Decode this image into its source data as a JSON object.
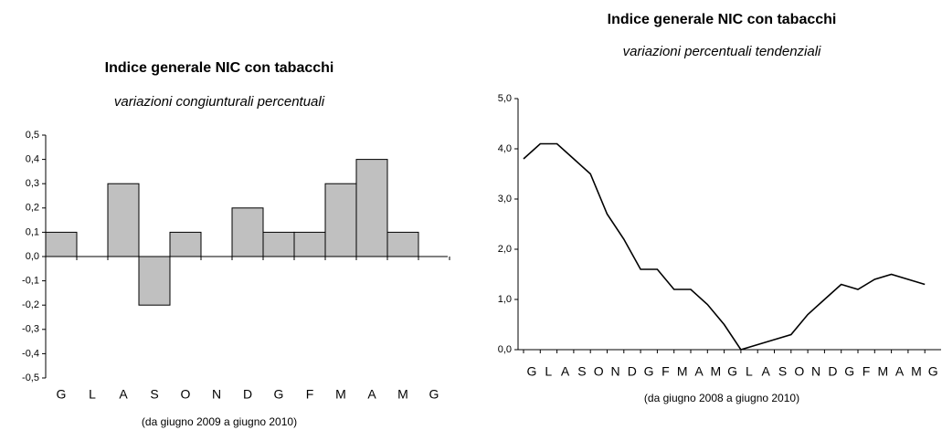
{
  "chart_data": [
    {
      "type": "bar",
      "title": "Indice generale NIC con tabacchi",
      "subtitle": "variazioni congiunturali percentuali",
      "x_label": "(da giugno 2009  a giugno 2010)",
      "categories": [
        "G",
        "L",
        "A",
        "S",
        "O",
        "N",
        "D",
        "G",
        "F",
        "M",
        "A",
        "M",
        "G"
      ],
      "values": [
        0.1,
        0,
        0.3,
        -0.2,
        0.1,
        0,
        0.2,
        0.1,
        0.1,
        0.3,
        0.4,
        0.1,
        0
      ],
      "color": "#c0c0c0",
      "ylim": [
        -0.5,
        0.5
      ],
      "yticks": [
        {
          "value": 0.5,
          "label": "0,5"
        },
        {
          "value": 0.4,
          "label": "0,4"
        },
        {
          "value": 0.3,
          "label": "0,3"
        },
        {
          "value": 0.2,
          "label": "0,2"
        },
        {
          "value": 0.1,
          "label": "0,1"
        },
        {
          "value": 0,
          "label": "0,0"
        },
        {
          "value": -0.1,
          "label": "-0,1"
        },
        {
          "value": -0.2,
          "label": "-0,2"
        },
        {
          "value": -0.3,
          "label": "-0,3"
        },
        {
          "value": -0.4,
          "label": "-0,4"
        },
        {
          "value": -0.5,
          "label": "-0,5"
        }
      ]
    },
    {
      "type": "line",
      "title": "Indice generale NIC con tabacchi",
      "subtitle": "variazioni percentuali tendenziali",
      "x_label": "(da giugno 2008 a giugno 2010)",
      "categories": [
        "G",
        "L",
        "A",
        "S",
        "O",
        "N",
        "D",
        "G",
        "F",
        "M",
        "A",
        "M",
        "G",
        "L",
        "A",
        "S",
        "O",
        "N",
        "D",
        "G",
        "F",
        "M",
        "A",
        "M",
        "G"
      ],
      "values": [
        3.8,
        4.1,
        4.1,
        3.8,
        3.5,
        2.7,
        2.2,
        1.6,
        1.6,
        1.2,
        1.2,
        0.9,
        0.5,
        0.0,
        0.1,
        0.2,
        0.3,
        0.7,
        1.0,
        1.3,
        1.2,
        1.4,
        1.5,
        1.4,
        1.3
      ],
      "color": "#000000",
      "ylim": [
        0,
        5
      ],
      "yticks": [
        {
          "value": 0,
          "label": "0,0"
        },
        {
          "value": 1,
          "label": "1,0"
        },
        {
          "value": 2,
          "label": "2,0"
        },
        {
          "value": 3,
          "label": "3,0"
        },
        {
          "value": 4,
          "label": "4,0"
        },
        {
          "value": 5,
          "label": "5,0"
        }
      ]
    }
  ]
}
